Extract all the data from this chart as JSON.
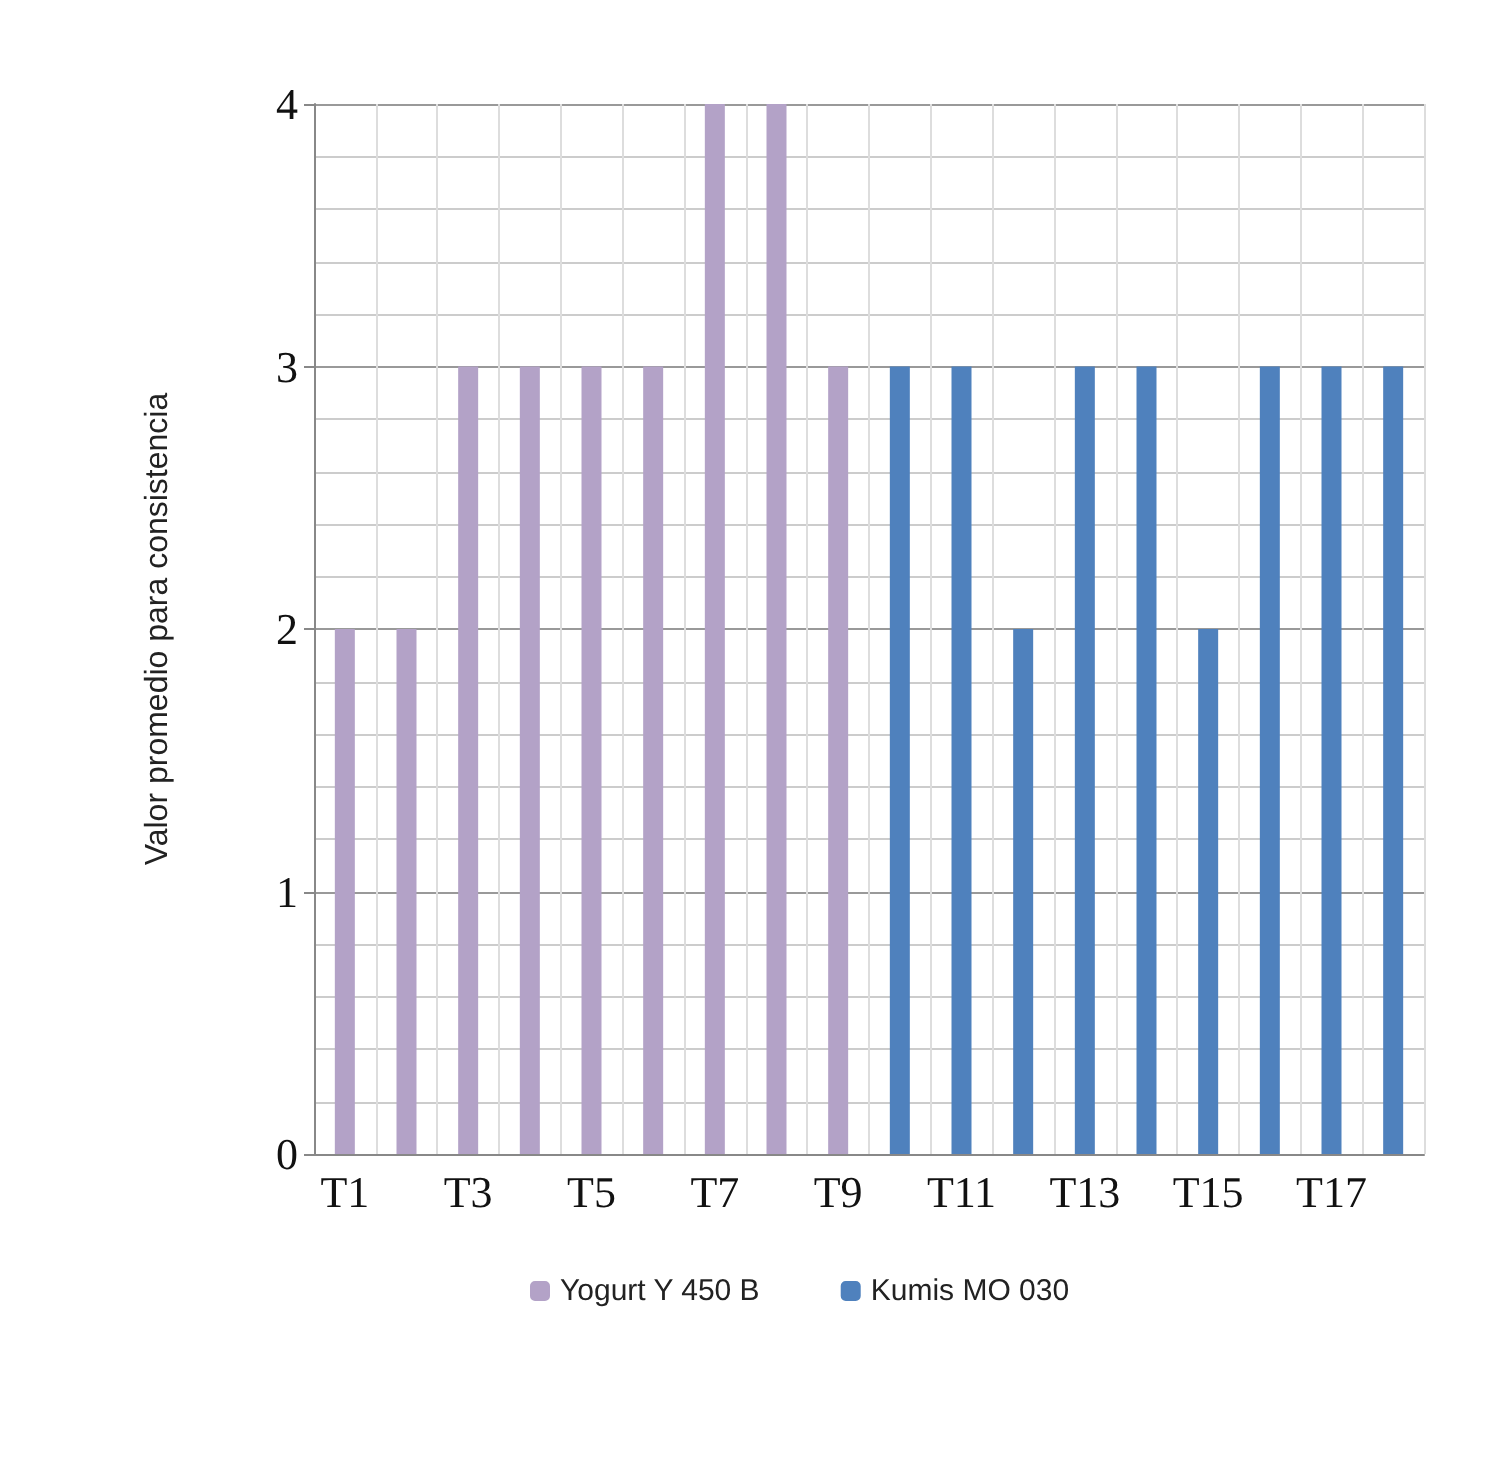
{
  "chart_data": {
    "type": "bar",
    "ylabel": "Valor promedio para consistencia",
    "categories": [
      "T1",
      null,
      "T3",
      null,
      "T5",
      null,
      "T7",
      null,
      "T9",
      null,
      "T11",
      null,
      "T13",
      null,
      "T15",
      null,
      "T17",
      null
    ],
    "series": [
      {
        "name": "Yogurt Y 450 B",
        "color": "#b3a2c7",
        "values": [
          2,
          2,
          3,
          3,
          3,
          3,
          4,
          4,
          3,
          null,
          null,
          null,
          null,
          null,
          null,
          null,
          null,
          null
        ]
      },
      {
        "name": "Kumis MO 030",
        "color": "#4f81bd",
        "values": [
          null,
          null,
          null,
          null,
          null,
          null,
          null,
          null,
          null,
          3,
          3,
          2,
          3,
          3,
          2,
          3,
          3,
          3
        ]
      }
    ],
    "ylim": [
      0,
      4
    ],
    "yticks": [
      0,
      1,
      2,
      3,
      4
    ],
    "grid": true,
    "legend": "bottom"
  }
}
